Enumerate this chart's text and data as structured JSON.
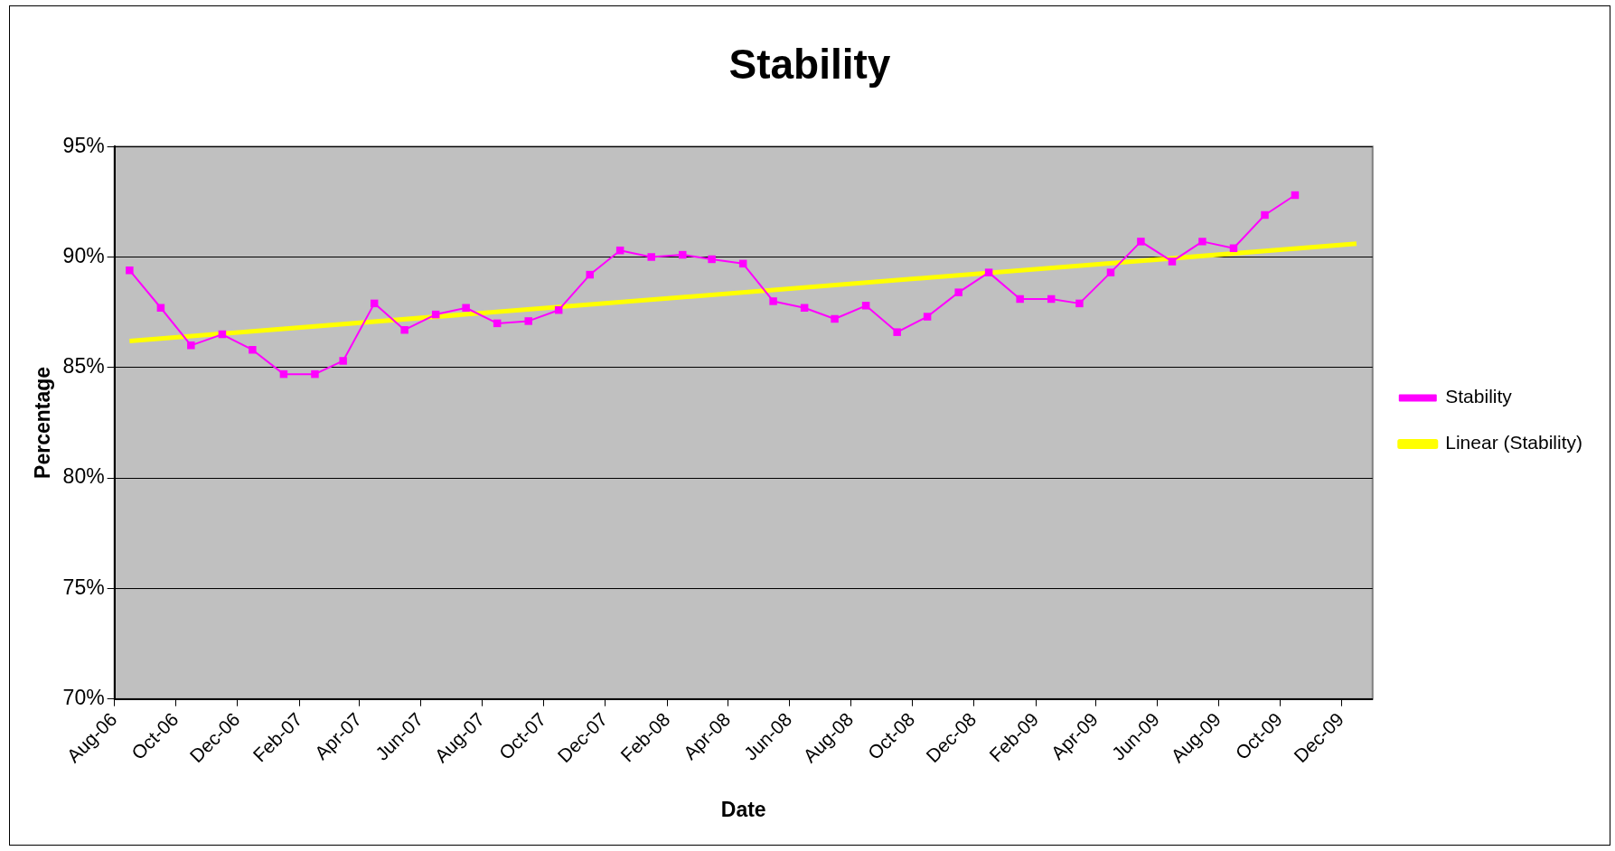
{
  "chart_data": {
    "type": "line",
    "title": "Stability",
    "xlabel": "Date",
    "ylabel": "Percentage",
    "x": [
      "2006-08-16",
      "2006-09-16",
      "2006-10-16",
      "2006-11-16",
      "2006-12-16",
      "2007-01-16",
      "2007-02-16",
      "2007-03-16",
      "2007-04-16",
      "2007-05-16",
      "2007-06-16",
      "2007-07-16",
      "2007-08-16",
      "2007-09-16",
      "2007-10-16",
      "2007-11-16",
      "2007-12-16",
      "2008-01-16",
      "2008-02-16",
      "2008-03-16",
      "2008-04-16",
      "2008-05-16",
      "2008-06-16",
      "2008-07-16",
      "2008-08-16",
      "2008-09-16",
      "2008-10-16",
      "2008-11-16",
      "2008-12-16",
      "2009-01-16",
      "2009-02-16",
      "2009-03-16",
      "2009-04-16",
      "2009-05-16",
      "2009-06-16",
      "2009-07-16",
      "2009-08-16",
      "2009-09-16",
      "2009-10-16"
    ],
    "series": [
      {
        "name": "Stability",
        "color": "#ff00ff",
        "marker": "square",
        "values": [
          89.4,
          87.7,
          86.0,
          86.5,
          85.8,
          84.7,
          84.7,
          85.3,
          87.9,
          86.7,
          87.4,
          87.7,
          87.0,
          87.1,
          87.6,
          89.2,
          90.3,
          90.0,
          90.1,
          89.9,
          89.7,
          88.0,
          87.7,
          87.2,
          87.8,
          86.6,
          87.3,
          88.4,
          89.3,
          88.1,
          88.1,
          87.9,
          89.3,
          90.7,
          89.8,
          90.7,
          90.4,
          91.9,
          92.8
        ]
      },
      {
        "name": "Linear (Stability)",
        "type": "line",
        "color": "#ffff00",
        "marker": "none",
        "x": [
          "2006-08-16",
          "2009-12-16"
        ],
        "values": [
          86.2,
          90.6
        ]
      }
    ],
    "xlim": [
      "2006-08-01",
      "2010-01-01"
    ],
    "xticks": [
      {
        "value": "2006-08-01",
        "label": "Aug-06"
      },
      {
        "value": "2006-10-01",
        "label": "Oct-06"
      },
      {
        "value": "2006-12-01",
        "label": "Dec-06"
      },
      {
        "value": "2007-02-01",
        "label": "Feb-07"
      },
      {
        "value": "2007-04-01",
        "label": "Apr-07"
      },
      {
        "value": "2007-06-01",
        "label": "Jun-07"
      },
      {
        "value": "2007-08-01",
        "label": "Aug-07"
      },
      {
        "value": "2007-10-01",
        "label": "Oct-07"
      },
      {
        "value": "2007-12-01",
        "label": "Dec-07"
      },
      {
        "value": "2008-02-01",
        "label": "Feb-08"
      },
      {
        "value": "2008-04-01",
        "label": "Apr-08"
      },
      {
        "value": "2008-06-01",
        "label": "Jun-08"
      },
      {
        "value": "2008-08-01",
        "label": "Aug-08"
      },
      {
        "value": "2008-10-01",
        "label": "Oct-08"
      },
      {
        "value": "2008-12-01",
        "label": "Dec-08"
      },
      {
        "value": "2009-02-01",
        "label": "Feb-09"
      },
      {
        "value": "2009-04-01",
        "label": "Apr-09"
      },
      {
        "value": "2009-06-01",
        "label": "Jun-09"
      },
      {
        "value": "2009-08-01",
        "label": "Aug-09"
      },
      {
        "value": "2009-10-01",
        "label": "Oct-09"
      },
      {
        "value": "2009-12-01",
        "label": "Dec-09"
      }
    ],
    "ylim": [
      70,
      95
    ],
    "yticks": [
      {
        "value": 70,
        "label": "70%"
      },
      {
        "value": 75,
        "label": "75%"
      },
      {
        "value": 80,
        "label": "80%"
      },
      {
        "value": 85,
        "label": "85%"
      },
      {
        "value": 90,
        "label": "90%"
      },
      {
        "value": 95,
        "label": "95%"
      }
    ],
    "grid": "y",
    "legend": "right"
  }
}
